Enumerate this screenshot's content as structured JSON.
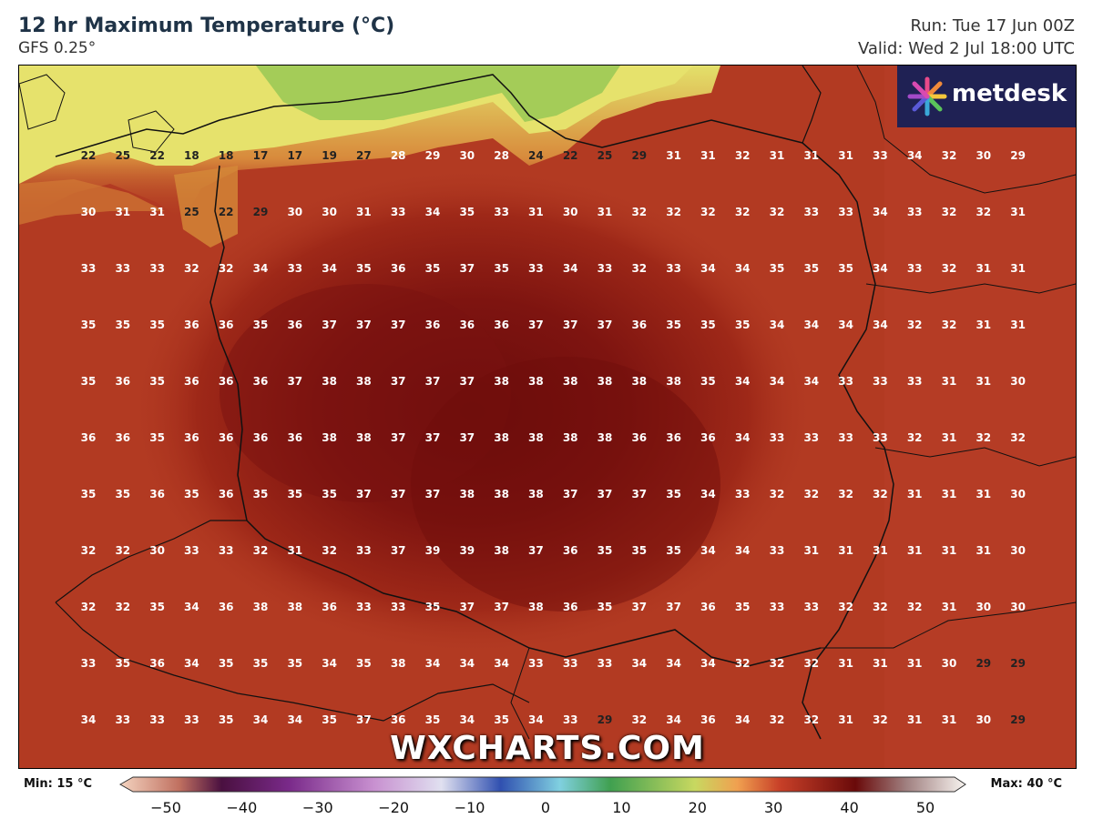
{
  "header": {
    "title": "12 hr Maximum Temperature (°C)",
    "model": "GFS 0.25°",
    "run": "Run: Tue 17 Jun 00Z",
    "valid": "Valid: Wed 2 Jul 18:00 UTC"
  },
  "branding": {
    "logo_text": "metdesk",
    "watermark": "WXCHARTS.COM"
  },
  "legend": {
    "min_label": "Min: 15 °C",
    "max_label": "Max: 40 °C",
    "ticks": [
      "−50",
      "−40",
      "−30",
      "−20",
      "−10",
      "0",
      "10",
      "20",
      "30",
      "40",
      "50"
    ]
  },
  "colors": {
    "hot": "#b23a22",
    "hotter": "#8c1a12",
    "hottest": "#6a0c0c",
    "warm": "#c65a2a",
    "mild_yellow": "#e8e070",
    "cool_green": "#9ccc52",
    "logo_bg": "#1f2154"
  },
  "grid_values": [
    [
      "22",
      "25",
      "22",
      "18",
      "18",
      "17",
      "17",
      "19",
      "27",
      "28",
      "29",
      "30",
      "28",
      "24",
      "22",
      "25",
      "29",
      "31",
      "31",
      "32",
      "31",
      "31",
      "31",
      "33",
      "34",
      "32",
      "30",
      "29"
    ],
    [
      "30",
      "31",
      "31",
      "25",
      "22",
      "29",
      "30",
      "30",
      "31",
      "33",
      "34",
      "35",
      "33",
      "31",
      "30",
      "31",
      "32",
      "32",
      "32",
      "32",
      "32",
      "33",
      "33",
      "34",
      "33",
      "32",
      "32",
      "31"
    ],
    [
      "33",
      "33",
      "33",
      "32",
      "32",
      "34",
      "33",
      "34",
      "35",
      "36",
      "35",
      "37",
      "35",
      "33",
      "34",
      "33",
      "32",
      "33",
      "34",
      "34",
      "35",
      "35",
      "35",
      "34",
      "33",
      "32",
      "31",
      "31"
    ],
    [
      "35",
      "35",
      "35",
      "36",
      "36",
      "35",
      "36",
      "37",
      "37",
      "37",
      "36",
      "36",
      "36",
      "37",
      "37",
      "37",
      "36",
      "35",
      "35",
      "35",
      "34",
      "34",
      "34",
      "34",
      "32",
      "32",
      "31",
      "31"
    ],
    [
      "35",
      "36",
      "35",
      "36",
      "36",
      "36",
      "37",
      "38",
      "38",
      "37",
      "37",
      "37",
      "38",
      "38",
      "38",
      "38",
      "38",
      "38",
      "35",
      "34",
      "34",
      "34",
      "33",
      "33",
      "33",
      "31",
      "31",
      "30"
    ],
    [
      "36",
      "36",
      "35",
      "36",
      "36",
      "36",
      "36",
      "38",
      "38",
      "37",
      "37",
      "37",
      "38",
      "38",
      "38",
      "38",
      "36",
      "36",
      "36",
      "34",
      "33",
      "33",
      "33",
      "33",
      "32",
      "31",
      "32",
      "32"
    ],
    [
      "35",
      "35",
      "36",
      "35",
      "36",
      "35",
      "35",
      "35",
      "37",
      "37",
      "37",
      "38",
      "38",
      "38",
      "37",
      "37",
      "37",
      "35",
      "34",
      "33",
      "32",
      "32",
      "32",
      "32",
      "31",
      "31",
      "31",
      "30"
    ],
    [
      "32",
      "32",
      "30",
      "33",
      "33",
      "32",
      "31",
      "32",
      "33",
      "37",
      "39",
      "39",
      "38",
      "37",
      "36",
      "35",
      "35",
      "35",
      "34",
      "34",
      "33",
      "31",
      "31",
      "31",
      "31",
      "31",
      "31",
      "30"
    ],
    [
      "32",
      "32",
      "35",
      "34",
      "36",
      "38",
      "38",
      "36",
      "33",
      "33",
      "35",
      "37",
      "37",
      "38",
      "36",
      "35",
      "37",
      "37",
      "36",
      "35",
      "33",
      "33",
      "32",
      "32",
      "32",
      "31",
      "30",
      "30"
    ],
    [
      "33",
      "35",
      "36",
      "34",
      "35",
      "35",
      "35",
      "34",
      "35",
      "38",
      "34",
      "34",
      "34",
      "33",
      "33",
      "33",
      "34",
      "34",
      "34",
      "32",
      "32",
      "32",
      "31",
      "31",
      "31",
      "30",
      "29",
      "29"
    ],
    [
      "34",
      "33",
      "33",
      "33",
      "35",
      "34",
      "34",
      "35",
      "37",
      "36",
      "35",
      "34",
      "35",
      "34",
      "33",
      "29",
      "32",
      "34",
      "36",
      "34",
      "32",
      "32",
      "31",
      "32",
      "31",
      "31",
      "30",
      "29"
    ]
  ]
}
